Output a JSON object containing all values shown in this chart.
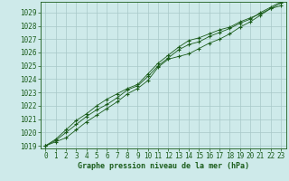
{
  "title": "Graphe pression niveau de la mer (hPa)",
  "bg_color": "#ceeaea",
  "grid_color": "#a8c8c8",
  "line_color": "#1a5c1a",
  "xlim": [
    -0.5,
    23.5
  ],
  "ylim": [
    1018.8,
    1029.8
  ],
  "yticks": [
    1019,
    1020,
    1021,
    1022,
    1023,
    1024,
    1025,
    1026,
    1027,
    1028,
    1029
  ],
  "xticks": [
    0,
    1,
    2,
    3,
    4,
    5,
    6,
    7,
    8,
    9,
    10,
    11,
    12,
    13,
    14,
    15,
    16,
    17,
    18,
    19,
    20,
    21,
    22,
    23
  ],
  "series": [
    [
      1019.0,
      1019.3,
      1019.6,
      1020.2,
      1020.8,
      1021.3,
      1021.8,
      1022.3,
      1022.9,
      1023.3,
      1023.9,
      1024.9,
      1025.5,
      1025.7,
      1025.9,
      1026.3,
      1026.7,
      1027.0,
      1027.4,
      1027.9,
      1028.3,
      1028.8,
      1029.3,
      1029.5
    ],
    [
      1019.0,
      1019.5,
      1020.2,
      1020.9,
      1021.4,
      1022.0,
      1022.5,
      1022.9,
      1023.3,
      1023.6,
      1024.4,
      1025.2,
      1025.8,
      1026.4,
      1026.9,
      1027.1,
      1027.4,
      1027.7,
      1027.9,
      1028.3,
      1028.6,
      1028.9,
      1029.3,
      1029.7
    ],
    [
      1019.0,
      1019.4,
      1020.0,
      1020.6,
      1021.2,
      1021.7,
      1022.1,
      1022.6,
      1023.2,
      1023.5,
      1024.2,
      1025.0,
      1025.6,
      1026.2,
      1026.6,
      1026.8,
      1027.2,
      1027.5,
      1027.8,
      1028.2,
      1028.5,
      1029.0,
      1029.4,
      1029.8
    ]
  ],
  "tick_fontsize": 5.5,
  "label_fontsize": 6.0
}
